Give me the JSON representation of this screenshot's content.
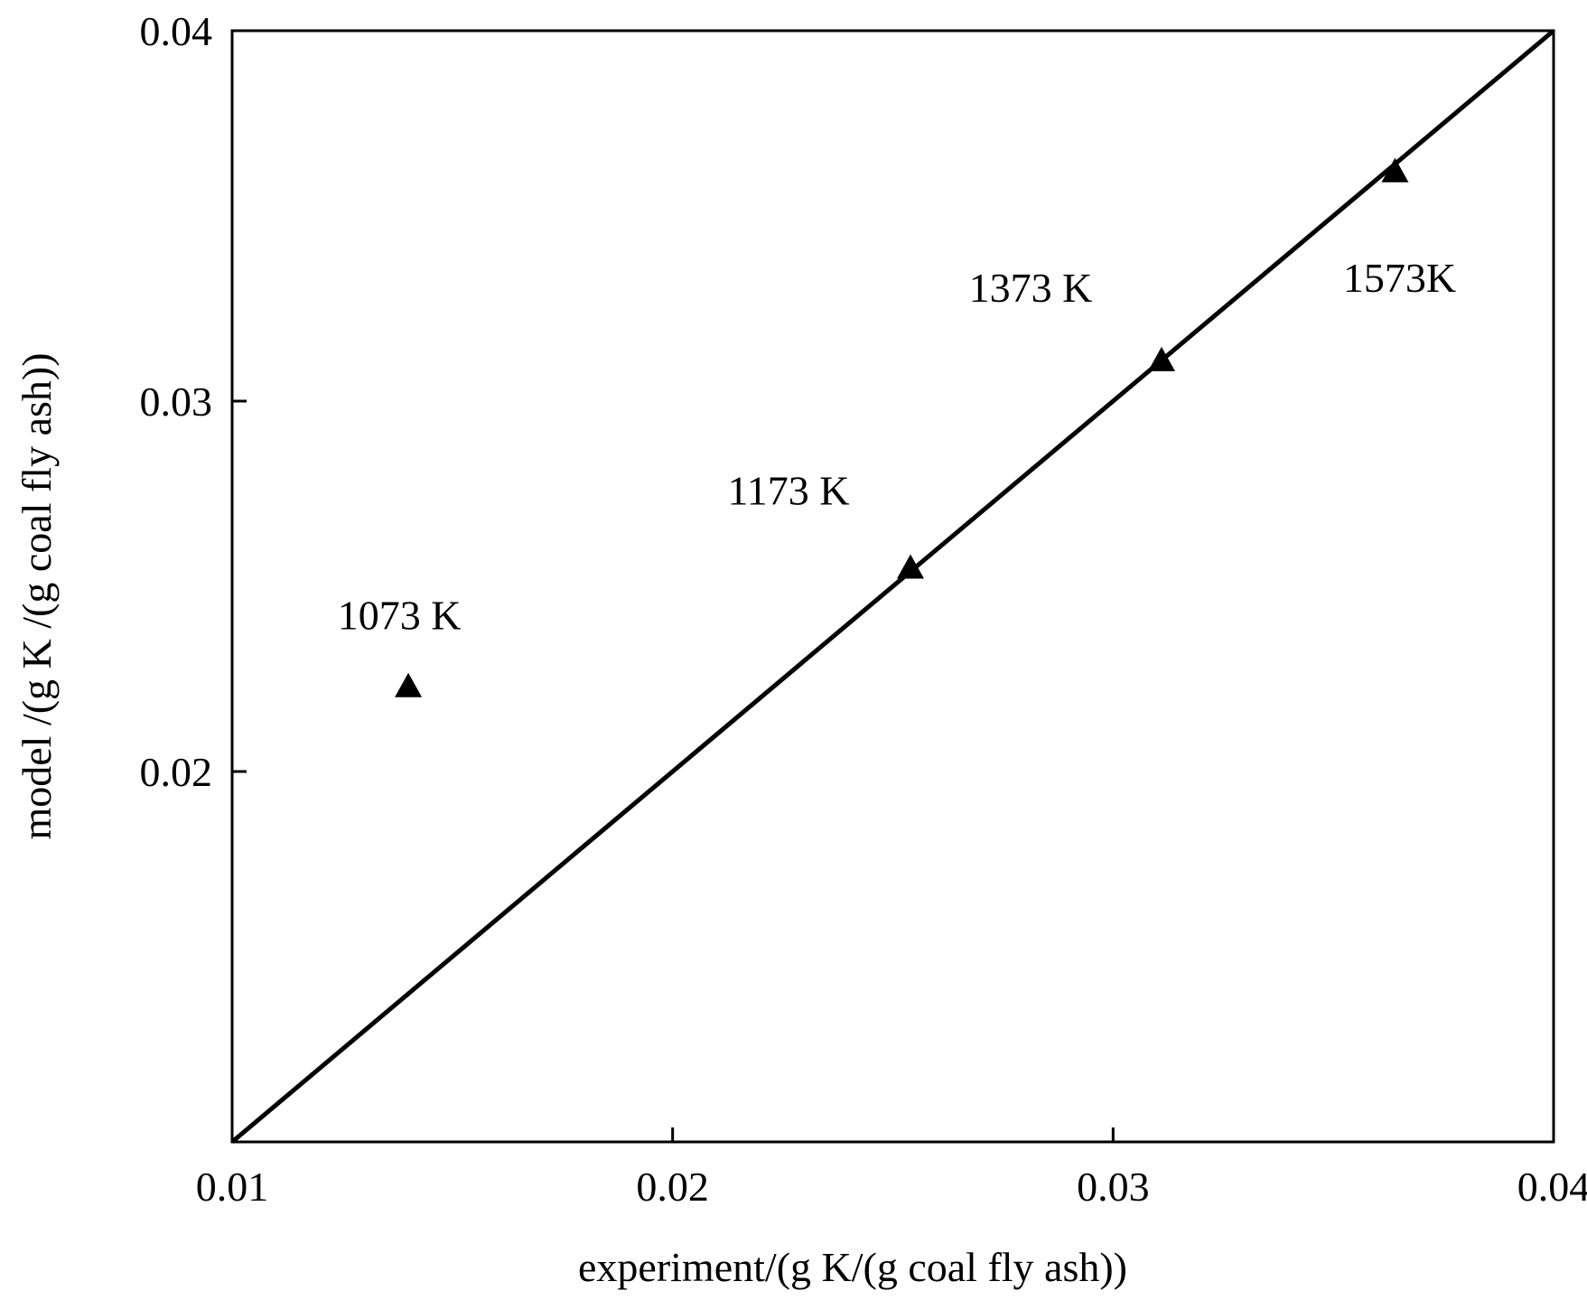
{
  "chart_data": {
    "type": "scatter",
    "xlabel": "experiment/(g K/(g coal fly ash))",
    "ylabel": "model /(g K /(g coal fly ash))",
    "xlim": [
      0.01,
      0.04
    ],
    "ylim": [
      0.01,
      0.04
    ],
    "xticks": [
      "0.01",
      "0.02",
      "0.03",
      "0.04"
    ],
    "yticks": [
      "0.02",
      "0.03",
      "0.04"
    ],
    "ytick_values": [
      0.02,
      0.03,
      0.04
    ],
    "xtick_values": [
      0.01,
      0.02,
      0.03,
      0.04
    ],
    "grid": false,
    "reference_line": {
      "x": [
        0.01,
        0.04
      ],
      "y": [
        0.01,
        0.04
      ]
    },
    "points": [
      {
        "label": "1073 K",
        "x": 0.014,
        "y": 0.0223
      },
      {
        "label": "1173 K",
        "x": 0.0254,
        "y": 0.0255
      },
      {
        "label": "1373 K",
        "x": 0.0311,
        "y": 0.0311
      },
      {
        "label": "1573K",
        "x": 0.0364,
        "y": 0.0362
      }
    ]
  }
}
